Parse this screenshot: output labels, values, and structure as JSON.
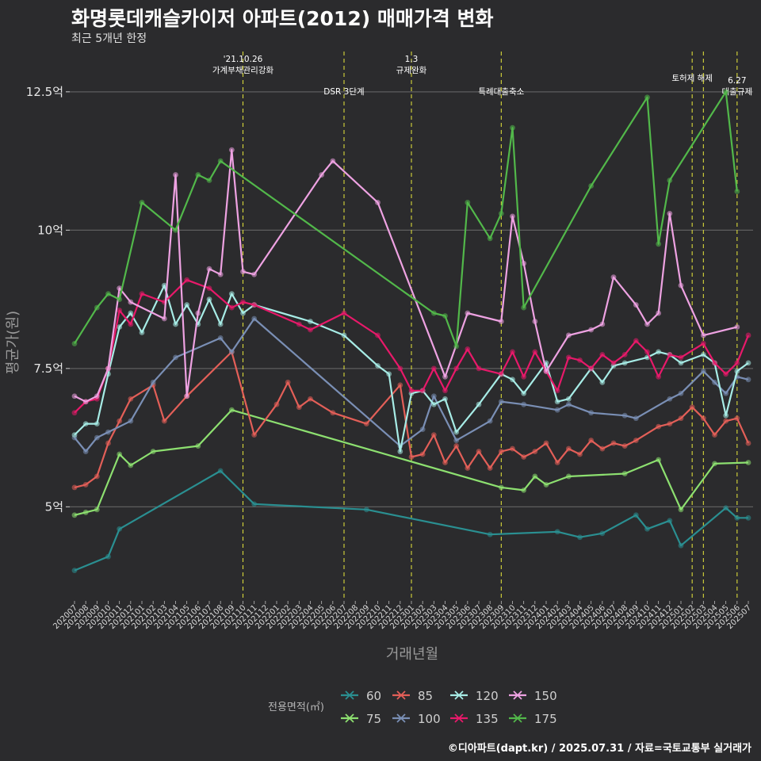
{
  "title": "화명롯데캐슬카이저 아파트(2012) 매매가격 변화",
  "subtitle": "최근 5개년 한정",
  "caption": "©디아파트(dapt.kr) / 2025.07.31 / 자료=국토교통부 실거래가",
  "chart_data": {
    "type": "line",
    "xlabel": "거래년월",
    "ylabel": "평균가(원)",
    "ylim": [
      3.3,
      13.3
    ],
    "yticks": [
      {
        "value": 5,
        "label": "5억"
      },
      {
        "value": 7.5,
        "label": "7.5억"
      },
      {
        "value": 10,
        "label": "10억"
      },
      {
        "value": 12.5,
        "label": "12.5억"
      }
    ],
    "x_categories": [
      "202007",
      "202008",
      "202009",
      "202010",
      "202011",
      "202012",
      "202101",
      "202102",
      "202103",
      "202104",
      "202105",
      "202106",
      "202107",
      "202108",
      "202109",
      "202110",
      "202111",
      "202112",
      "202201",
      "202202",
      "202203",
      "202204",
      "202205",
      "202206",
      "202207",
      "202208",
      "202209",
      "202210",
      "202211",
      "202212",
      "202301",
      "202302",
      "202303",
      "202304",
      "202305",
      "202306",
      "202307",
      "202308",
      "202309",
      "202310",
      "202311",
      "202312",
      "202401",
      "202402",
      "202403",
      "202404",
      "202405",
      "202406",
      "202407",
      "202408",
      "202409",
      "202410",
      "202411",
      "202412",
      "202501",
      "202502",
      "202503",
      "202504",
      "202505",
      "202506",
      "202507"
    ],
    "events": [
      {
        "x": "202110",
        "label": "'21.10.26\n가계부채관리강화",
        "level": 0
      },
      {
        "x": "202207",
        "label": "DSR 3단계",
        "level": 1
      },
      {
        "x": "202301",
        "label": "1.3\n규제완화",
        "level": 0
      },
      {
        "x": "202309",
        "label": "특례대출축소",
        "level": 1
      },
      {
        "x": "202502",
        "label": "토허제 해제",
        "level": 0
      },
      {
        "x": "202503",
        "label": "",
        "level": 0
      },
      {
        "x": "202506",
        "label": "6.27\n대출규제",
        "level": 1
      }
    ],
    "legend_title": "전용면적(㎡)",
    "legend_position": "bottom",
    "series": [
      {
        "name": "60",
        "color": "#2a8f91",
        "points": [
          [
            0,
            3.85
          ],
          [
            3,
            4.1
          ],
          [
            4,
            4.6
          ],
          [
            13,
            5.65
          ],
          [
            16,
            5.05
          ],
          [
            26,
            4.95
          ],
          [
            37,
            4.5
          ],
          [
            43,
            4.55
          ],
          [
            45,
            4.45
          ],
          [
            47,
            4.52
          ],
          [
            50,
            4.85
          ],
          [
            51,
            4.6
          ],
          [
            53,
            4.75
          ],
          [
            54,
            4.3
          ],
          [
            58,
            4.98
          ],
          [
            59,
            4.8
          ],
          [
            60,
            4.8
          ]
        ]
      },
      {
        "name": "75",
        "color": "#8de070",
        "points": [
          [
            0,
            4.85
          ],
          [
            1,
            4.9
          ],
          [
            2,
            4.95
          ],
          [
            4,
            5.95
          ],
          [
            5,
            5.75
          ],
          [
            7,
            6.0
          ],
          [
            11,
            6.1
          ],
          [
            14,
            6.75
          ],
          [
            38,
            5.35
          ],
          [
            40,
            5.3
          ],
          [
            41,
            5.55
          ],
          [
            42,
            5.4
          ],
          [
            44,
            5.55
          ],
          [
            49,
            5.6
          ],
          [
            52,
            5.85
          ],
          [
            54,
            4.95
          ],
          [
            57,
            5.78
          ],
          [
            60,
            5.8
          ]
        ]
      },
      {
        "name": "85",
        "color": "#e35f58",
        "points": [
          [
            0,
            5.35
          ],
          [
            1,
            5.4
          ],
          [
            2,
            5.55
          ],
          [
            3,
            6.15
          ],
          [
            4,
            6.55
          ],
          [
            5,
            6.95
          ],
          [
            7,
            7.2
          ],
          [
            8,
            6.55
          ],
          [
            10,
            7.0
          ],
          [
            14,
            7.8
          ],
          [
            16,
            6.3
          ],
          [
            18,
            6.85
          ],
          [
            19,
            7.25
          ],
          [
            20,
            6.8
          ],
          [
            21,
            6.95
          ],
          [
            23,
            6.7
          ],
          [
            26,
            6.5
          ],
          [
            29,
            7.2
          ],
          [
            30,
            5.9
          ],
          [
            31,
            5.95
          ],
          [
            32,
            6.3
          ],
          [
            33,
            5.8
          ],
          [
            34,
            6.1
          ],
          [
            35,
            5.7
          ],
          [
            36,
            6.0
          ],
          [
            37,
            5.7
          ],
          [
            38,
            6.0
          ],
          [
            39,
            6.05
          ],
          [
            40,
            5.9
          ],
          [
            41,
            6.0
          ],
          [
            42,
            6.15
          ],
          [
            43,
            5.8
          ],
          [
            44,
            6.05
          ],
          [
            45,
            5.95
          ],
          [
            46,
            6.2
          ],
          [
            47,
            6.05
          ],
          [
            48,
            6.15
          ],
          [
            49,
            6.1
          ],
          [
            50,
            6.2
          ],
          [
            52,
            6.45
          ],
          [
            53,
            6.5
          ],
          [
            54,
            6.6
          ],
          [
            55,
            6.8
          ],
          [
            56,
            6.6
          ],
          [
            57,
            6.3
          ],
          [
            58,
            6.55
          ],
          [
            59,
            6.6
          ],
          [
            60,
            6.15
          ]
        ]
      },
      {
        "name": "100",
        "color": "#7a8fb5",
        "points": [
          [
            0,
            6.25
          ],
          [
            1,
            6.0
          ],
          [
            2,
            6.25
          ],
          [
            3,
            6.35
          ],
          [
            5,
            6.55
          ],
          [
            7,
            7.25
          ],
          [
            9,
            7.7
          ],
          [
            13,
            8.05
          ],
          [
            14,
            7.8
          ],
          [
            16,
            8.4
          ],
          [
            29,
            6.1
          ],
          [
            31,
            6.4
          ],
          [
            32,
            7.0
          ],
          [
            34,
            6.2
          ],
          [
            37,
            6.55
          ],
          [
            38,
            6.9
          ],
          [
            40,
            6.85
          ],
          [
            43,
            6.75
          ],
          [
            44,
            6.85
          ],
          [
            46,
            6.7
          ],
          [
            49,
            6.65
          ],
          [
            50,
            6.6
          ],
          [
            53,
            6.95
          ],
          [
            54,
            7.05
          ],
          [
            56,
            7.45
          ],
          [
            57,
            7.25
          ],
          [
            58,
            7.05
          ],
          [
            59,
            7.35
          ],
          [
            60,
            7.3
          ]
        ]
      },
      {
        "name": "120",
        "color": "#a7ece6",
        "points": [
          [
            0,
            6.3
          ],
          [
            1,
            6.5
          ],
          [
            2,
            6.5
          ],
          [
            3,
            7.4
          ],
          [
            4,
            8.25
          ],
          [
            5,
            8.5
          ],
          [
            6,
            8.15
          ],
          [
            8,
            9.0
          ],
          [
            9,
            8.3
          ],
          [
            10,
            8.65
          ],
          [
            11,
            8.3
          ],
          [
            12,
            8.75
          ],
          [
            13,
            8.3
          ],
          [
            14,
            8.85
          ],
          [
            15,
            8.5
          ],
          [
            16,
            8.65
          ],
          [
            21,
            8.35
          ],
          [
            24,
            8.1
          ],
          [
            27,
            7.55
          ],
          [
            28,
            7.4
          ],
          [
            29,
            6.0
          ],
          [
            30,
            7.05
          ],
          [
            31,
            7.1
          ],
          [
            32,
            6.85
          ],
          [
            33,
            6.95
          ],
          [
            34,
            6.35
          ],
          [
            36,
            6.85
          ],
          [
            38,
            7.4
          ],
          [
            39,
            7.3
          ],
          [
            40,
            7.05
          ],
          [
            42,
            7.6
          ],
          [
            43,
            6.9
          ],
          [
            44,
            6.95
          ],
          [
            46,
            7.5
          ],
          [
            47,
            7.25
          ],
          [
            48,
            7.55
          ],
          [
            49,
            7.6
          ],
          [
            51,
            7.7
          ],
          [
            52,
            7.8
          ],
          [
            53,
            7.75
          ],
          [
            54,
            7.6
          ],
          [
            56,
            7.75
          ],
          [
            57,
            7.6
          ],
          [
            58,
            6.65
          ],
          [
            59,
            7.45
          ],
          [
            60,
            7.6
          ]
        ]
      },
      {
        "name": "135",
        "color": "#e8196a",
        "points": [
          [
            0,
            6.7
          ],
          [
            1,
            6.9
          ],
          [
            2,
            6.95
          ],
          [
            3,
            7.5
          ],
          [
            4,
            8.55
          ],
          [
            5,
            8.3
          ],
          [
            6,
            8.85
          ],
          [
            8,
            8.7
          ],
          [
            10,
            9.1
          ],
          [
            12,
            8.95
          ],
          [
            14,
            8.6
          ],
          [
            15,
            8.7
          ],
          [
            16,
            8.65
          ],
          [
            20,
            8.3
          ],
          [
            21,
            8.2
          ],
          [
            24,
            8.5
          ],
          [
            27,
            8.1
          ],
          [
            29,
            7.5
          ],
          [
            30,
            7.1
          ],
          [
            31,
            7.1
          ],
          [
            32,
            7.5
          ],
          [
            33,
            7.1
          ],
          [
            34,
            7.5
          ],
          [
            35,
            7.85
          ],
          [
            36,
            7.5
          ],
          [
            38,
            7.4
          ],
          [
            39,
            7.8
          ],
          [
            40,
            7.35
          ],
          [
            41,
            7.8
          ],
          [
            42,
            7.45
          ],
          [
            43,
            7.1
          ],
          [
            44,
            7.7
          ],
          [
            45,
            7.65
          ],
          [
            46,
            7.5
          ],
          [
            47,
            7.75
          ],
          [
            48,
            7.6
          ],
          [
            49,
            7.75
          ],
          [
            50,
            8.0
          ],
          [
            51,
            7.8
          ],
          [
            52,
            7.35
          ],
          [
            53,
            7.75
          ],
          [
            54,
            7.7
          ],
          [
            56,
            7.95
          ],
          [
            57,
            7.6
          ],
          [
            58,
            7.4
          ],
          [
            59,
            7.6
          ],
          [
            60,
            8.1
          ]
        ]
      },
      {
        "name": "150",
        "color": "#eea2e2",
        "points": [
          [
            0,
            7.0
          ],
          [
            1,
            6.9
          ],
          [
            2,
            7.0
          ],
          [
            3,
            7.5
          ],
          [
            4,
            8.95
          ],
          [
            5,
            8.7
          ],
          [
            8,
            8.4
          ],
          [
            9,
            11.0
          ],
          [
            10,
            7.0
          ],
          [
            11,
            8.5
          ],
          [
            12,
            9.3
          ],
          [
            13,
            9.2
          ],
          [
            14,
            11.45
          ],
          [
            15,
            9.25
          ],
          [
            16,
            9.2
          ],
          [
            22,
            11.0
          ],
          [
            23,
            11.25
          ],
          [
            27,
            10.5
          ],
          [
            33,
            7.35
          ],
          [
            35,
            8.5
          ],
          [
            38,
            8.35
          ],
          [
            39,
            10.25
          ],
          [
            40,
            9.4
          ],
          [
            41,
            8.35
          ],
          [
            42,
            7.45
          ],
          [
            44,
            8.1
          ],
          [
            46,
            8.2
          ],
          [
            47,
            8.3
          ],
          [
            48,
            9.15
          ],
          [
            50,
            8.65
          ],
          [
            51,
            8.3
          ],
          [
            52,
            8.5
          ],
          [
            53,
            10.3
          ],
          [
            54,
            9.0
          ],
          [
            56,
            8.1
          ],
          [
            59,
            8.25
          ]
        ]
      },
      {
        "name": "175",
        "color": "#52b84a",
        "points": [
          [
            0,
            7.95
          ],
          [
            2,
            8.6
          ],
          [
            3,
            8.85
          ],
          [
            4,
            8.75
          ],
          [
            6,
            10.5
          ],
          [
            9,
            10.0
          ],
          [
            11,
            11.0
          ],
          [
            12,
            10.9
          ],
          [
            13,
            11.25
          ],
          [
            32,
            8.5
          ],
          [
            33,
            8.45
          ],
          [
            34,
            7.9
          ],
          [
            35,
            10.5
          ],
          [
            37,
            9.85
          ],
          [
            38,
            10.3
          ],
          [
            39,
            11.85
          ],
          [
            40,
            8.6
          ],
          [
            46,
            10.8
          ],
          [
            51,
            12.4
          ],
          [
            52,
            9.75
          ],
          [
            53,
            10.9
          ],
          [
            58,
            12.5
          ],
          [
            59,
            10.7
          ]
        ]
      }
    ]
  }
}
